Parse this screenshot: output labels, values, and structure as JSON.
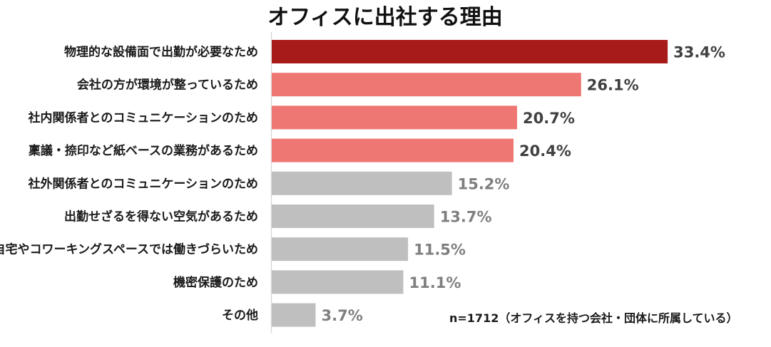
{
  "chart_data": {
    "type": "bar",
    "orientation": "horizontal",
    "title": "オフィスに出社する理由",
    "categories": [
      "物理的な設備面で出勤が必要なため",
      "会社の方が環境が整っているため",
      "社内関係者とのコミュニケーションのため",
      "稟議・捺印など紙ベースの業務があるため",
      "社外関係者とのコミュニケーションのため",
      "出勤せざるを得ない空気があるため",
      "自宅やコワーキングスペースでは働きづらいため",
      "機密保護のため",
      "その他"
    ],
    "values": [
      33.4,
      26.1,
      20.7,
      20.4,
      15.2,
      13.7,
      11.5,
      11.1,
      3.7
    ],
    "value_labels": [
      "33.4%",
      "26.1%",
      "20.7%",
      "20.4%",
      "15.2%",
      "13.7%",
      "11.5%",
      "11.1%",
      "3.7%"
    ],
    "xlim": [
      0,
      40
    ],
    "grid": false,
    "legend": "none",
    "note": "n=1712（オフィスを持つ会社・団体に所属している）",
    "colors": [
      "#a71c1a",
      "#ef7773",
      "#ef7773",
      "#ef7773",
      "#bfbfbf",
      "#bfbfbf",
      "#bfbfbf",
      "#bfbfbf",
      "#bfbfbf"
    ],
    "value_label_colors": [
      "#404040",
      "#404040",
      "#404040",
      "#404040",
      "#7f7f7f",
      "#7f7f7f",
      "#7f7f7f",
      "#7f7f7f",
      "#7f7f7f"
    ],
    "axis_color": "#d9d9d9"
  }
}
